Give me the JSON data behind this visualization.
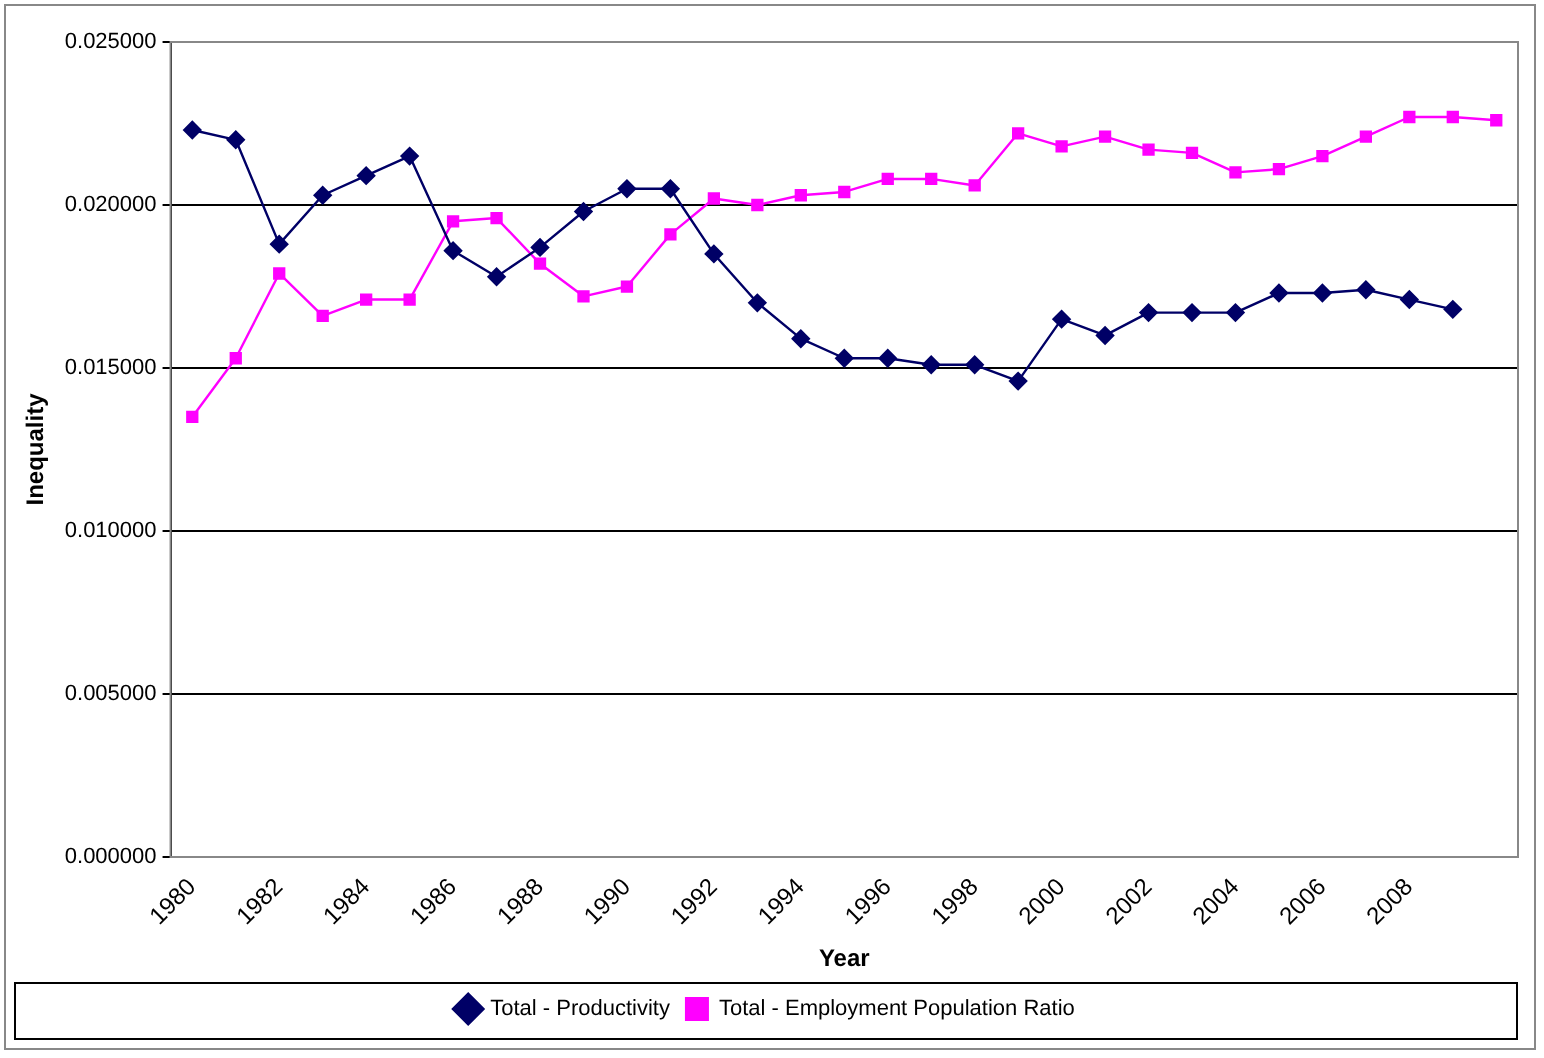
{
  "chart_data": {
    "type": "line",
    "xlabel": "Year",
    "ylabel": "Inequality",
    "categories": [
      "1980",
      null,
      "1982",
      null,
      "1984",
      null,
      "1986",
      null,
      "1988",
      null,
      "1990",
      null,
      "1992",
      null,
      "1994",
      null,
      "1996",
      null,
      "1998",
      null,
      "2000",
      null,
      "2002",
      null,
      "2004",
      null,
      "2006",
      null,
      "2008",
      null,
      null
    ],
    "series": [
      {
        "name": "Total - Productivity",
        "color": "#000066",
        "marker": "diamond",
        "values": [
          0.0223,
          0.022,
          0.0188,
          0.0203,
          0.0209,
          0.0215,
          0.0186,
          0.0178,
          0.0187,
          0.0198,
          0.0205,
          0.0205,
          0.0185,
          0.017,
          0.0159,
          0.0153,
          0.0153,
          0.0151,
          0.0151,
          0.0146,
          0.0165,
          0.016,
          0.0167,
          0.0167,
          0.0167,
          0.0173,
          0.0173,
          0.0174,
          0.0171,
          0.0168,
          null
        ]
      },
      {
        "name": "Total - Employment Population Ratio",
        "color": "#ff00ff",
        "marker": "square",
        "values": [
          0.0135,
          0.0153,
          0.0179,
          0.0166,
          0.0171,
          0.0171,
          0.0195,
          0.0196,
          0.0182,
          0.0172,
          0.0175,
          0.0191,
          0.0202,
          0.02,
          0.0203,
          0.0204,
          0.0208,
          0.0208,
          0.0206,
          0.0222,
          0.0218,
          0.0221,
          0.0217,
          0.0216,
          0.021,
          0.0211,
          0.0215,
          0.0221,
          0.0227,
          0.0227,
          0.0226
        ]
      }
    ],
    "ylim": [
      0,
      0.025
    ],
    "yticks": [
      {
        "value": 0,
        "label": "0.000000"
      },
      {
        "value": 0.005,
        "label": "0.005000"
      },
      {
        "value": 0.01,
        "label": "0.010000"
      },
      {
        "value": 0.015,
        "label": "0.015000"
      },
      {
        "value": 0.02,
        "label": "0.020000"
      },
      {
        "value": 0.025,
        "label": "0.025000"
      }
    ],
    "grid": "y",
    "legend": "bottom",
    "line_style": "solid"
  }
}
